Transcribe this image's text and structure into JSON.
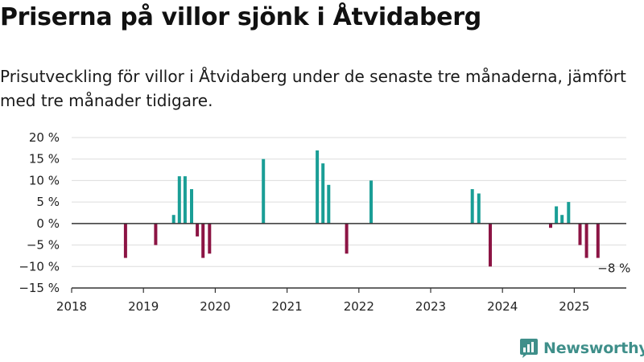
{
  "title": "Priserna på villor sjönk i Åtvidaberg",
  "subtitle": "Prisutveckling för villor i Åtvidaberg under de senaste tre månaderna, jämfört med tre månader tidigare.",
  "brand": "Newsworthy",
  "colors": {
    "positive": "#1a9e96",
    "negative": "#8c1444",
    "grid": "#dddddd",
    "zero_line": "#333333",
    "brand": "#3f8f8a"
  },
  "chart_data": {
    "type": "bar",
    "y_tick_labels": [
      "20 %",
      "15 %",
      "10 %",
      "5 %",
      "0 %",
      "−5 %",
      "−10 %",
      "−15 %"
    ],
    "x_tick_labels": [
      "2018",
      "2019",
      "2020",
      "2021",
      "2022",
      "2023",
      "2024",
      "2025"
    ],
    "ylim": [
      -15,
      20
    ],
    "xlim": [
      2018,
      2025.8
    ],
    "grid": true,
    "unit": "%",
    "points": [
      {
        "x": 2018.75,
        "value": -8
      },
      {
        "x": 2019.17,
        "value": -5
      },
      {
        "x": 2019.42,
        "value": 2
      },
      {
        "x": 2019.5,
        "value": 11
      },
      {
        "x": 2019.58,
        "value": 11
      },
      {
        "x": 2019.67,
        "value": 8
      },
      {
        "x": 2019.75,
        "value": -3
      },
      {
        "x": 2019.83,
        "value": -8
      },
      {
        "x": 2019.92,
        "value": -7
      },
      {
        "x": 2020.67,
        "value": 15
      },
      {
        "x": 2021.42,
        "value": 17
      },
      {
        "x": 2021.5,
        "value": 14
      },
      {
        "x": 2021.58,
        "value": 9
      },
      {
        "x": 2021.83,
        "value": -7
      },
      {
        "x": 2022.17,
        "value": 10
      },
      {
        "x": 2023.58,
        "value": 8
      },
      {
        "x": 2023.67,
        "value": 7
      },
      {
        "x": 2023.83,
        "value": -10
      },
      {
        "x": 2024.67,
        "value": -1
      },
      {
        "x": 2024.75,
        "value": 4
      },
      {
        "x": 2024.83,
        "value": 2
      },
      {
        "x": 2024.92,
        "value": 5
      },
      {
        "x": 2025.08,
        "value": -5
      },
      {
        "x": 2025.17,
        "value": -8
      },
      {
        "x": 2025.33,
        "value": -8
      }
    ],
    "annotation": {
      "text": "−8 %",
      "x": 2025.33,
      "value": -8
    }
  }
}
